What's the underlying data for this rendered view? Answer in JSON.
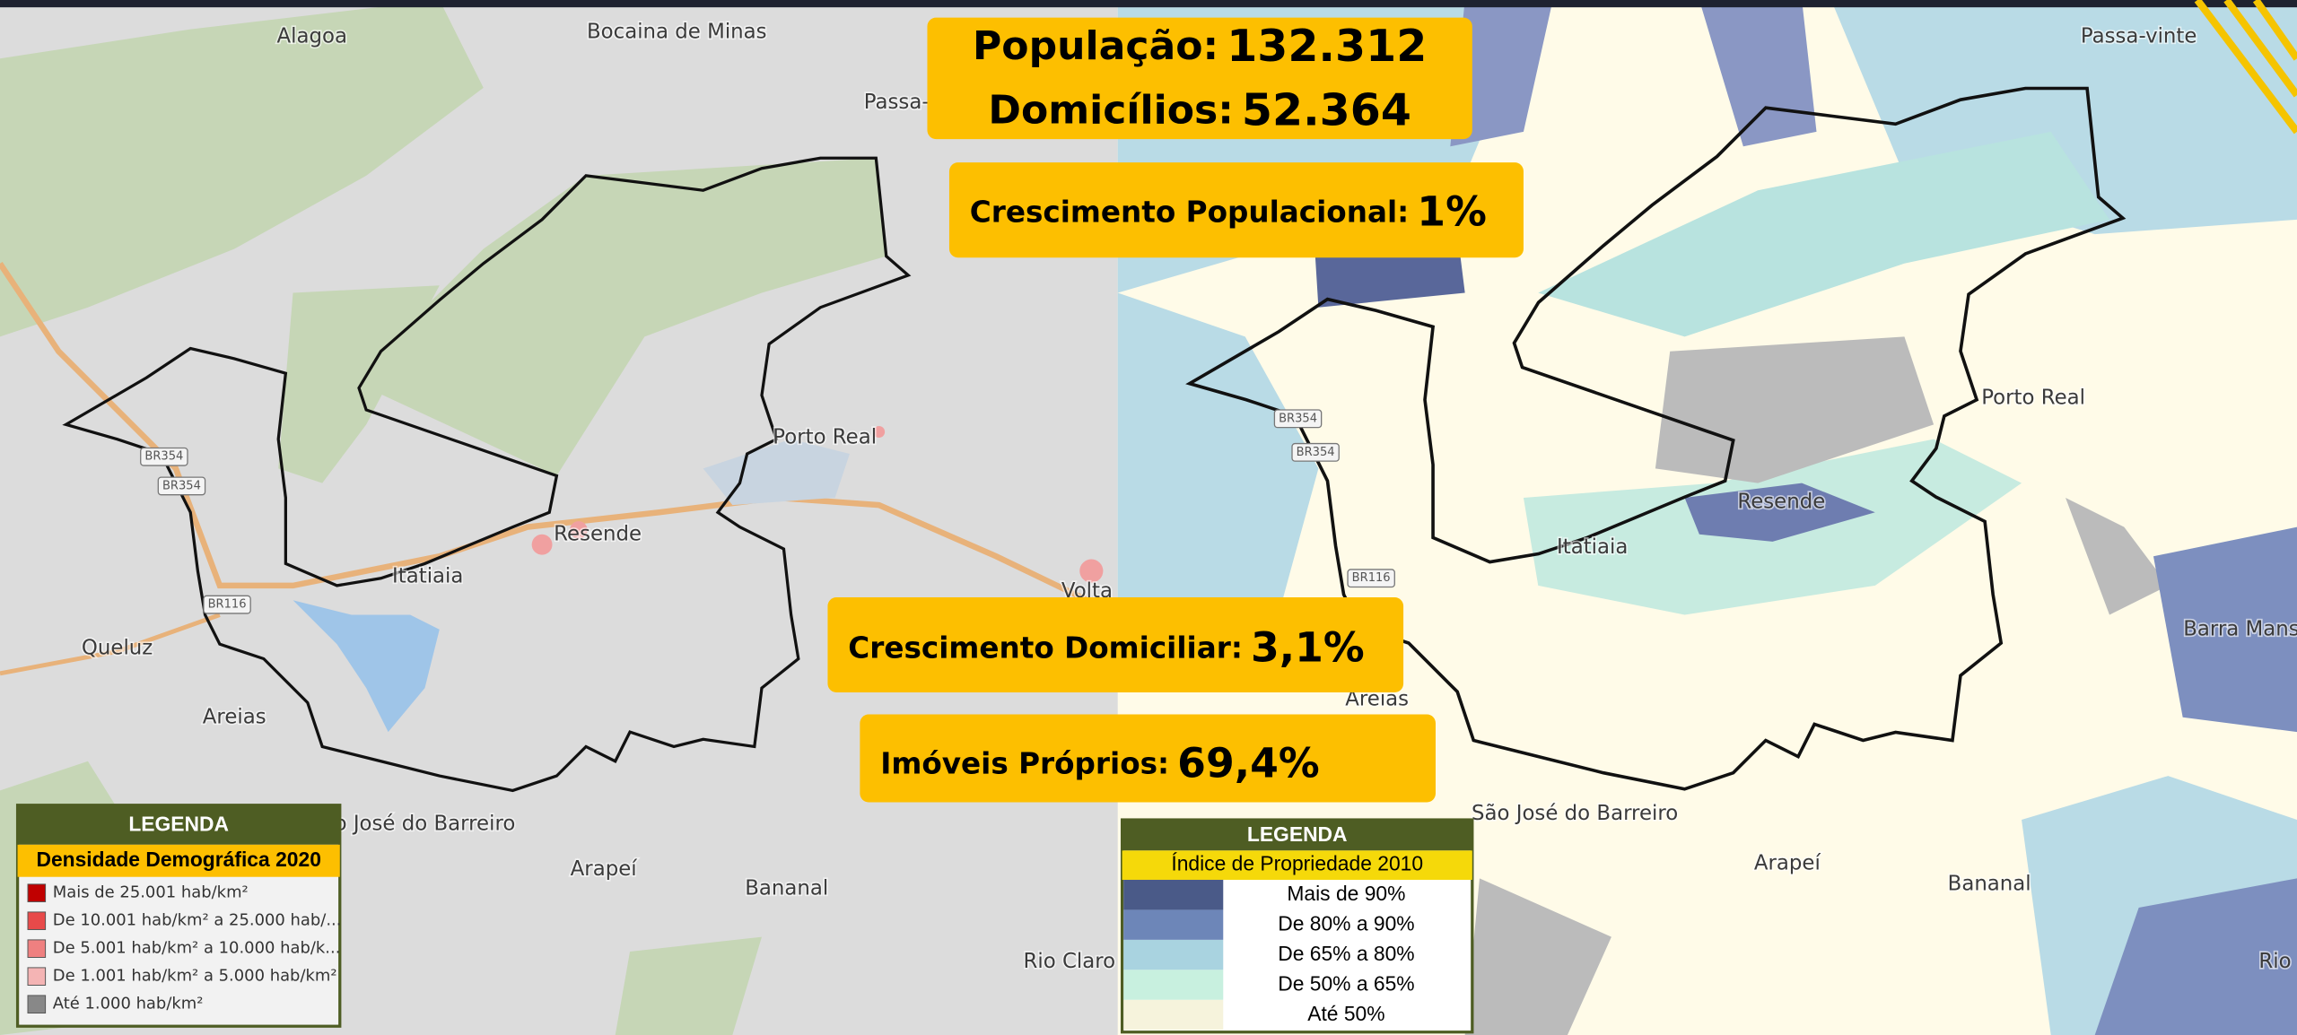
{
  "stats": [
    {
      "label": "População:",
      "value": "132.312"
    },
    {
      "label": "Domicílios:",
      "value": "52.364"
    },
    {
      "label": "Crescimento Populacional:",
      "value": "1%"
    },
    {
      "label": "Crescimento Domiciliar:",
      "value": "3,1%"
    },
    {
      "label": "Imóveis Próprios:",
      "value": "69,4%"
    }
  ],
  "map_left": {
    "places": [
      "Alagoa",
      "Bocaina de Minas",
      "Passa-",
      "Porto Real",
      "Resende",
      "Itatiaia",
      "Queluz",
      "Areias",
      "o José do Barreiro",
      "Arapeí",
      "Bananal",
      "Rio Claro",
      "Volta",
      "BR354",
      "BR354",
      "BR116"
    ]
  },
  "map_right": {
    "places": [
      "Passa-vinte",
      "Porto Real",
      "Resende",
      "Itatiaia",
      "Areias",
      "São José do Barreiro",
      "Arapeí",
      "Bananal",
      "Barra Mans",
      "Rio",
      "BR354",
      "BR354",
      "BR116"
    ]
  },
  "legend_left": {
    "title": "LEGENDA",
    "subtitle": "Densidade Demográfica 2020",
    "items": [
      "Mais de 25.001 hab/km²",
      "De 10.001 hab/km² a 25.000 hab/...",
      "De 5.001 hab/km² a 10.000 hab/k...",
      "De 1.001 hab/km² a 5.000 hab/km²",
      "Até 1.000 hab/km²"
    ]
  },
  "legend_right": {
    "title": "LEGENDA",
    "subtitle": "Índice de Propriedade 2010",
    "items": [
      "Mais de 90%",
      "De 80% a 90%",
      "De 65% a 80%",
      "De 50% a 65%",
      "Até 50%"
    ]
  }
}
